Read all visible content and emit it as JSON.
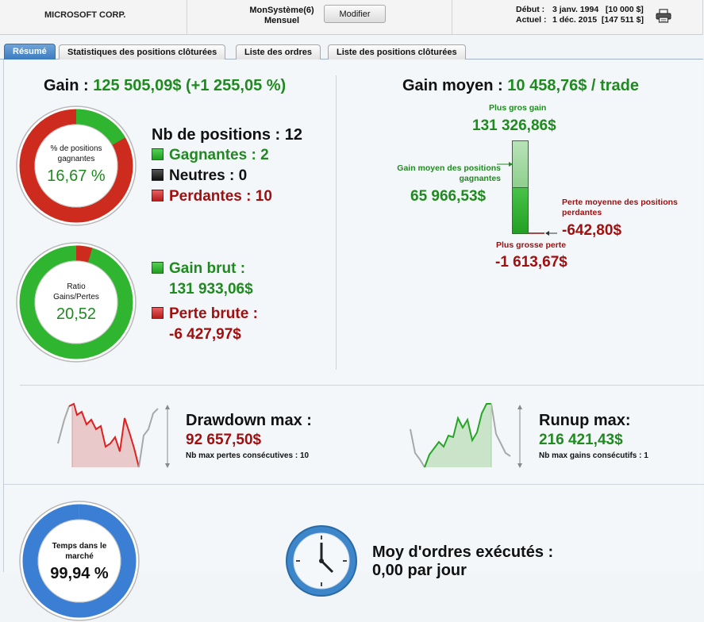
{
  "header": {
    "symbol": "MICROSOFT CORP.",
    "system_name": "MonSystème(6)",
    "period": "Mensuel",
    "modify_label": "Modifier",
    "start_label": "Début :",
    "start_value": "3 janv. 1994   [10 000 $]",
    "current_label": "Actuel :",
    "current_value": "1 déc. 2015  [147 511 $]",
    "print_icon": "printer-icon"
  },
  "tabs": [
    {
      "label": "Résumé",
      "active": true
    },
    {
      "label": "Statistiques des positions clôturées",
      "active": false
    },
    {
      "label": "Liste des ordres",
      "active": false
    },
    {
      "label": "Liste des positions clôturées",
      "active": false
    }
  ],
  "summary": {
    "gain_label": "Gain :",
    "gain_value": "125 505,09$ (+1 255,05 %)",
    "win_ring": {
      "caption": "% de positions gagnantes",
      "value": "16,67 %",
      "fraction": 0.1667,
      "colors": {
        "part": "#2fb52f",
        "rest": "#cc2b1d"
      }
    },
    "positions_label": "Nb de positions : 12",
    "winners_label": "Gagnantes : 2",
    "neutral_label": "Neutres : 0",
    "losers_label": "Perdantes : 10",
    "ratio_ring": {
      "caption": "Ratio Gains/Pertes",
      "value": "20,52",
      "fraction": 0.046,
      "colors": {
        "part": "#cc2b1d",
        "rest": "#2fb52f"
      }
    },
    "gross_gain_label": "Gain brut :",
    "gross_gain_value": "131 933,06$",
    "gross_loss_label": "Perte brute :",
    "gross_loss_value": "-6 427,97$"
  },
  "average": {
    "title": "Gain moyen :",
    "value": "10 458,76$ / trade",
    "biggest_gain_label": "Plus gros gain",
    "biggest_gain_value": "131 326,86$",
    "avg_win_label": "Gain moyen des positions gagnantes",
    "avg_win_value": "65 966,53$",
    "avg_loss_label": "Perte moyenne des positions perdantes",
    "avg_loss_value": "-642,80$",
    "biggest_loss_label": "Plus grosse perte",
    "biggest_loss_value": "-1 613,67$"
  },
  "drawdown": {
    "title": "Drawdown max :",
    "value": "92 657,50$",
    "sub": "Nb max pertes consécutives : 10"
  },
  "runup": {
    "title": "Runup max:",
    "value": "216 421,43$",
    "sub": "Nb max gains consécutifs : 1"
  },
  "market_time": {
    "caption": "Temps dans le marché",
    "value": "99,94 %",
    "fraction": 0.9994,
    "colors": {
      "part": "#3a7fd4",
      "rest": "#d9d9d9"
    }
  },
  "orders": {
    "title": "Moy d'ordres exécutés :",
    "value": "0,00 par jour"
  },
  "colors": {
    "gain_green": "#1f8a1f",
    "loss_red": "#a10f0f",
    "tab_active": "#3c7cc0"
  }
}
